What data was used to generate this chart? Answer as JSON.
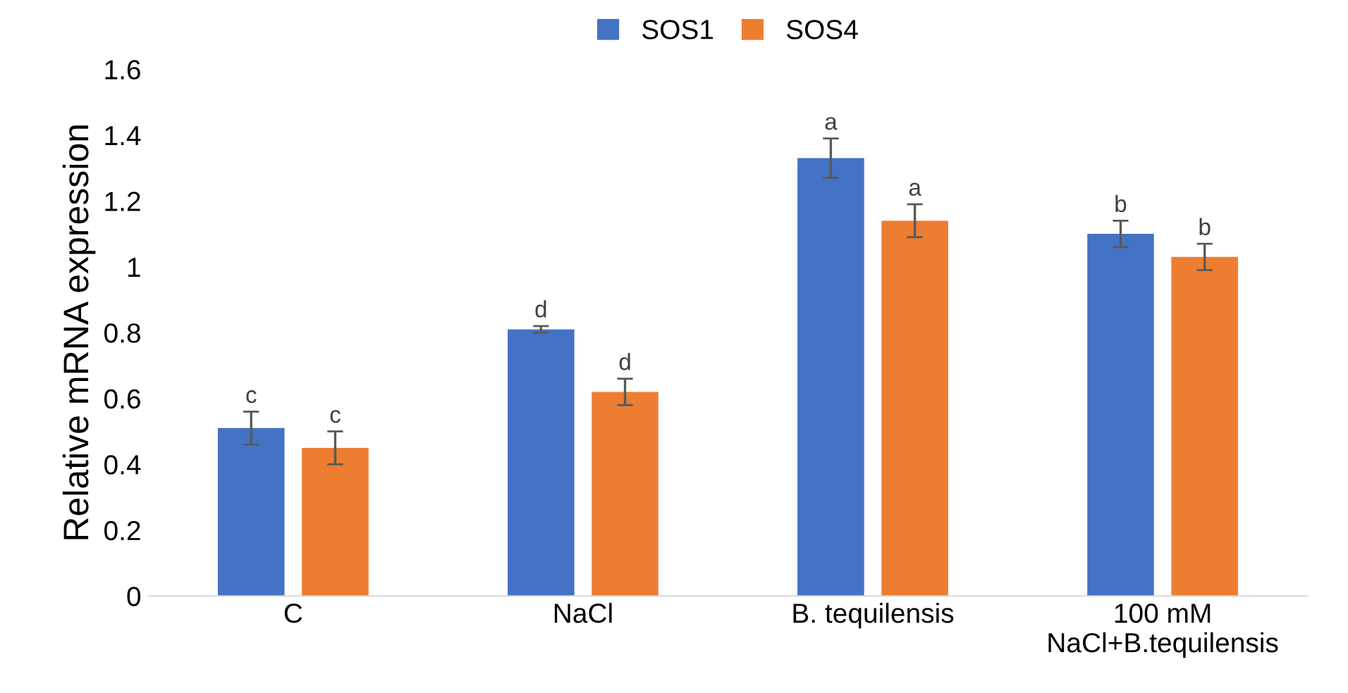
{
  "chart_data": {
    "type": "bar",
    "ylabel": "Relative mRNA expression",
    "categories": [
      "C",
      "NaCl",
      "B. tequilensis",
      "100 mM\nNaCl+B.tequilensis"
    ],
    "series": [
      {
        "name": "SOS1",
        "color": "#4472c4",
        "values": [
          0.51,
          0.81,
          1.33,
          1.1
        ],
        "errors": [
          0.05,
          0.01,
          0.06,
          0.04
        ]
      },
      {
        "name": "SOS4",
        "color": "#ed7d31",
        "values": [
          0.45,
          0.62,
          1.14,
          1.03
        ],
        "errors": [
          0.05,
          0.04,
          0.05,
          0.04
        ]
      }
    ],
    "annotations": [
      "c",
      "c",
      "d",
      "d",
      "a",
      "a",
      "b",
      "b"
    ],
    "ylim": [
      0,
      1.6
    ],
    "yticks": [
      0,
      0.2,
      0.4,
      0.6,
      0.8,
      1,
      1.2,
      1.4,
      1.6
    ],
    "grid": false,
    "legend": "top"
  }
}
